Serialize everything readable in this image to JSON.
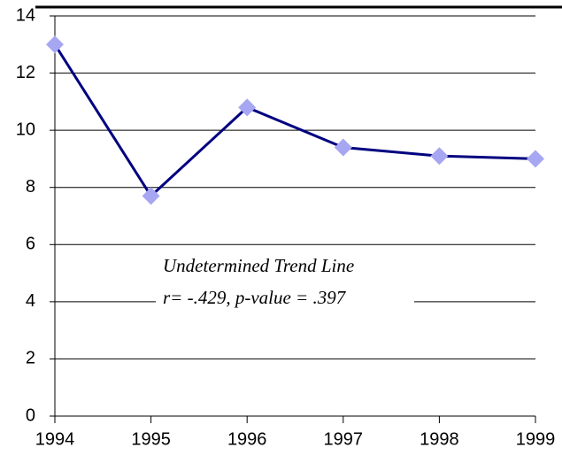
{
  "chart_data": {
    "type": "line",
    "x": [
      1994,
      1995,
      1996,
      1997,
      1998,
      1999
    ],
    "series": [
      {
        "color": "#000080",
        "marker_color": "#a6a6f2",
        "values": [
          13,
          7.7,
          10.8,
          9.4,
          9.1,
          9.0
        ]
      }
    ],
    "xlim": [
      1994,
      1999
    ],
    "xticks": [
      1994,
      1995,
      1996,
      1997,
      1998,
      1999
    ],
    "ylim": [
      0,
      14
    ],
    "yticks": [
      0,
      2,
      4,
      6,
      8,
      10,
      12,
      14
    ],
    "grid": true,
    "annotations": [
      "Undetermined Trend Line",
      "r= -.429, p-value = .397"
    ]
  }
}
